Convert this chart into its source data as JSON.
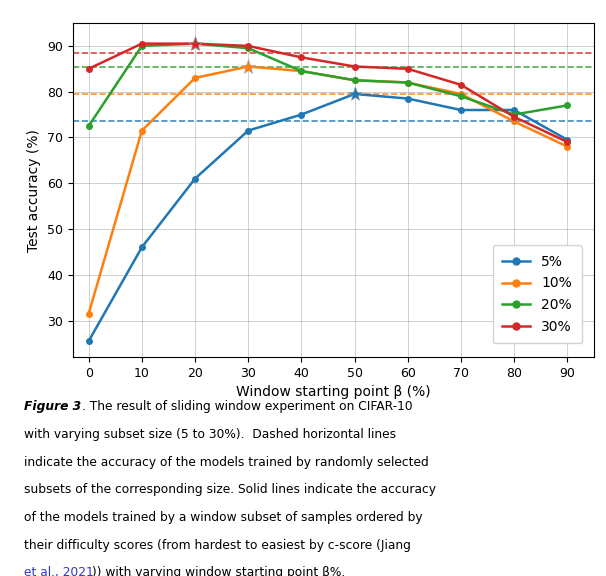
{
  "x": [
    0,
    10,
    20,
    30,
    40,
    50,
    60,
    70,
    80,
    90
  ],
  "series": {
    "5%": {
      "y": [
        25.5,
        46,
        61,
        71.5,
        75,
        79.5,
        78.5,
        76,
        76,
        69.5
      ],
      "color": "#1f77b4",
      "hline": 73.5,
      "star_x": 50,
      "star_y": 79.5
    },
    "10%": {
      "y": [
        31.5,
        71.5,
        83,
        85.5,
        84.5,
        82.5,
        82,
        79.5,
        73.5,
        68
      ],
      "color": "#ff7f0e",
      "hline": 79.5,
      "star_x": 30,
      "star_y": 85.5
    },
    "20%": {
      "y": [
        72.5,
        90,
        90.5,
        89.5,
        84.5,
        82.5,
        82,
        79,
        75,
        77
      ],
      "color": "#2ca02c",
      "hline": 85.5,
      "star_x": 20,
      "star_y": 90.5
    },
    "30%": {
      "y": [
        85,
        90.5,
        90.5,
        90,
        87.5,
        85.5,
        85,
        81.5,
        74.5,
        69
      ],
      "color": "#d62728",
      "hline": 88.5,
      "star_x": 20,
      "star_y": 90.5
    }
  },
  "xlabel": "Window starting point β (%)",
  "ylabel": "Test accuracy (%)",
  "xlim": [
    -3,
    95
  ],
  "ylim": [
    22,
    95
  ],
  "xticks": [
    0,
    10,
    20,
    30,
    40,
    50,
    60,
    70,
    80,
    90
  ],
  "yticks": [
    30,
    40,
    50,
    60,
    70,
    80,
    90
  ],
  "legend_order": [
    "5%",
    "10%",
    "20%",
    "30%"
  ],
  "figsize": [
    6.06,
    5.76
  ],
  "dpi": 100,
  "caption_italic": "Figure 3",
  "caption_rest": ". The result of sliding window experiment on CIFAR-10\nwith varying subset size (5 to 30%).  Dashed horizontal lines\nindicate the accuracy of the models trained by randomly selected\nsubsets of the corresponding size. Solid lines indicate the accuracy\nof the models trained by a window subset of samples ordered by\ntheir difficulty scores (from hardest to easiest by c-score (",
  "caption_link": "Jiang\net al., 2021",
  "caption_end": ")) with varying window starting point β%.",
  "caption_link_color": "#3333cc"
}
